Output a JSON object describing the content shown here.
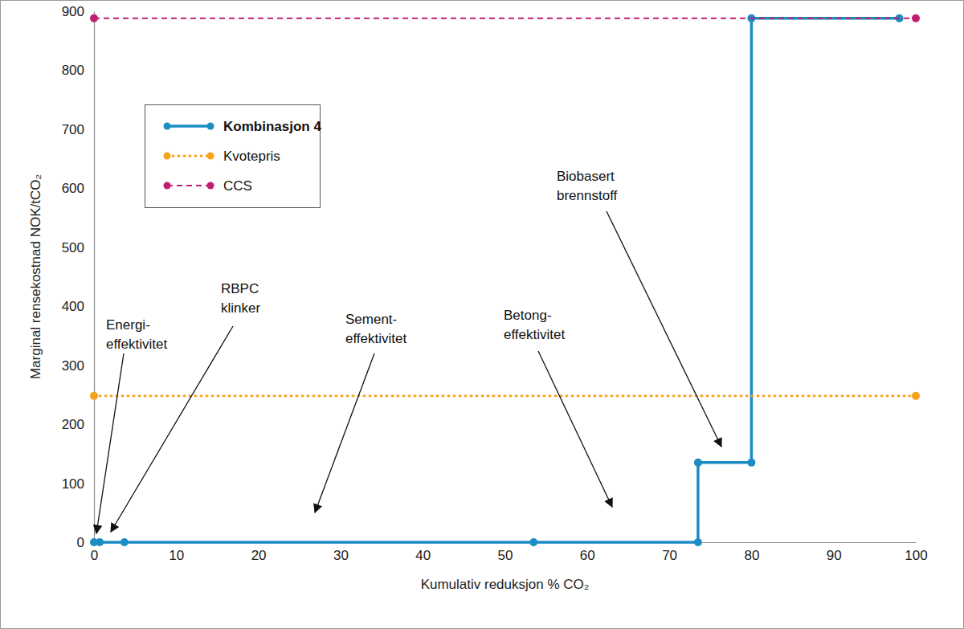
{
  "chart_data": {
    "type": "line",
    "x_label": "Kumulativ reduksjon % CO₂",
    "y_label": "Marginal rensekostnad NOK/tCO₂",
    "xlim": [
      0,
      100
    ],
    "xticks": [
      0,
      10,
      20,
      30,
      40,
      50,
      60,
      70,
      80,
      90,
      100
    ],
    "ylim": [
      0,
      900
    ],
    "yticks": [
      0,
      100,
      200,
      300,
      400,
      500,
      600,
      700,
      800,
      900
    ],
    "grid": false,
    "legend": "upper left",
    "series": [
      {
        "name": "Kombinasjon 4",
        "color": "#1b8dc3",
        "marker": "circle",
        "line_style": "solid",
        "x": [
          0,
          0.7,
          3.7,
          53.5,
          73.5,
          73.5,
          80,
          80,
          98
        ],
        "values": [
          0,
          0,
          0,
          0,
          0,
          135,
          135,
          888,
          888
        ]
      },
      {
        "name": "Kvotepris",
        "color": "#f5a31c",
        "marker": "circle",
        "line_style": "dotted",
        "x": [
          0,
          100
        ],
        "values": [
          248,
          248
        ]
      },
      {
        "name": "CCS",
        "color": "#c01f70",
        "marker": "circle",
        "line_style": "dashed",
        "x": [
          0,
          100
        ],
        "values": [
          888,
          888
        ]
      }
    ],
    "annotations": [
      {
        "text": "Energi-\neffektivitet"
      },
      {
        "text": "RBPC\nklinker"
      },
      {
        "text": "Sement-\neffektivitet"
      },
      {
        "text": "Betong-\neffektivitet"
      },
      {
        "text": "Biobasert\nbrennstoff"
      }
    ]
  }
}
